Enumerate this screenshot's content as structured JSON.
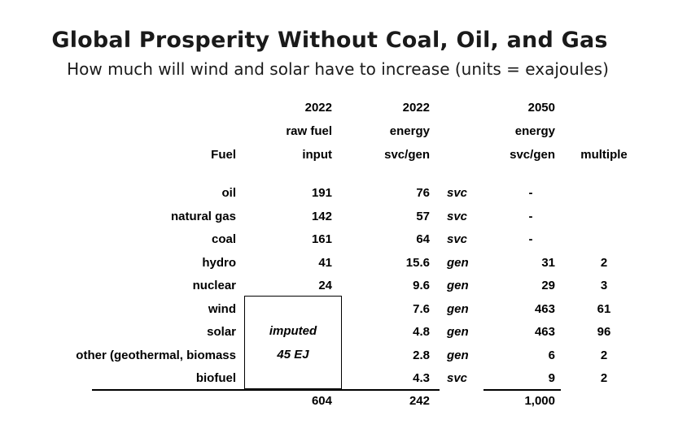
{
  "title": "Global Prosperity Without Coal, Oil, and Gas",
  "subtitle": "How much will wind and solar have to increase (units = exajoules)",
  "headers": {
    "fuel": "Fuel",
    "raw_fuel": [
      "2022",
      "raw fuel",
      "input"
    ],
    "energy_2022": [
      "2022",
      "energy",
      "svc/gen"
    ],
    "energy_2050": [
      "2050",
      "energy",
      "svc/gen"
    ],
    "multiple": "multiple"
  },
  "rows": [
    {
      "fuel": "oil",
      "raw": "191",
      "energy_2022": "76",
      "type": "svc",
      "energy_2050": "-",
      "multiple": ""
    },
    {
      "fuel": "natural gas",
      "raw": "142",
      "energy_2022": "57",
      "type": "svc",
      "energy_2050": "-",
      "multiple": ""
    },
    {
      "fuel": "coal",
      "raw": "161",
      "energy_2022": "64",
      "type": "svc",
      "energy_2050": "-",
      "multiple": ""
    },
    {
      "fuel": "hydro",
      "raw": "41",
      "energy_2022": "15.6",
      "type": "gen",
      "energy_2050": "31",
      "multiple": "2"
    },
    {
      "fuel": "nuclear",
      "raw": "24",
      "energy_2022": "9.6",
      "type": "gen",
      "energy_2050": "29",
      "multiple": "3"
    },
    {
      "fuel": "wind",
      "raw": "",
      "energy_2022": "7.6",
      "type": "gen",
      "energy_2050": "463",
      "multiple": "61"
    },
    {
      "fuel": "solar",
      "raw": "",
      "energy_2022": "4.8",
      "type": "gen",
      "energy_2050": "463",
      "multiple": "96"
    },
    {
      "fuel": "other (geothermal, biomass",
      "raw": "",
      "energy_2022": "2.8",
      "type": "gen",
      "energy_2050": "6",
      "multiple": "2"
    },
    {
      "fuel": "biofuel",
      "raw": "",
      "energy_2022": "4.3",
      "type": "svc",
      "energy_2050": "9",
      "multiple": "2"
    }
  ],
  "imputed": {
    "line1": "imputed",
    "line2": "45 EJ"
  },
  "totals": {
    "raw": "604",
    "energy_2022": "242",
    "energy_2050": "1,000"
  }
}
